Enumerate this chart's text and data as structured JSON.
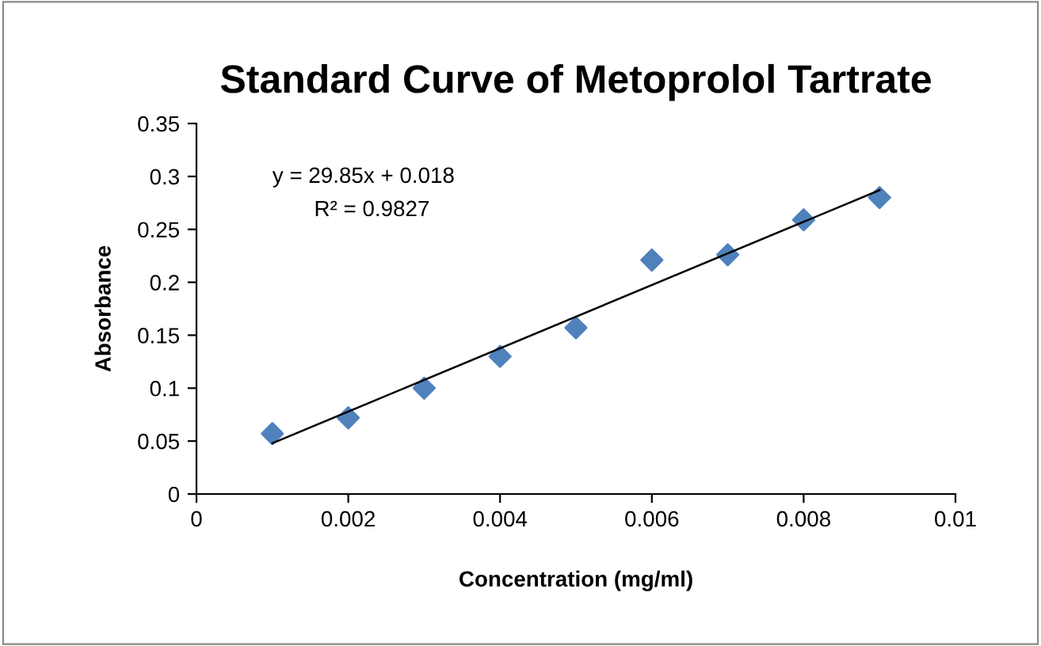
{
  "chart_data": {
    "type": "scatter",
    "title": "Standard Curve of Metoprolol Tartrate",
    "xlabel": "Concentration (mg/ml)",
    "ylabel": "Absorbance",
    "annotations": [
      "y = 29.85x + 0.018",
      "R² = 0.9827"
    ],
    "x": [
      0.001,
      0.002,
      0.003,
      0.004,
      0.005,
      0.006,
      0.007,
      0.008,
      0.009
    ],
    "series": [
      {
        "color": "#4f81bd",
        "values": [
          0.057,
          0.072,
          0.1,
          0.13,
          0.157,
          0.221,
          0.226,
          0.259,
          0.28
        ]
      },
      {
        "type": "line",
        "marker": "none",
        "color": "#000000",
        "x": [
          0.001,
          0.009
        ],
        "values": [
          0.048,
          0.287
        ]
      }
    ],
    "marker": "diamond",
    "grid": false,
    "legend": false,
    "xlim": [
      0,
      0.01
    ],
    "xticks": [
      0,
      0.002,
      0.004,
      0.006,
      0.008,
      0.01
    ],
    "ylim": [
      0,
      0.35
    ],
    "yticks": [
      0,
      0.05,
      0.1,
      0.15,
      0.2,
      0.25,
      0.3,
      0.35
    ]
  }
}
